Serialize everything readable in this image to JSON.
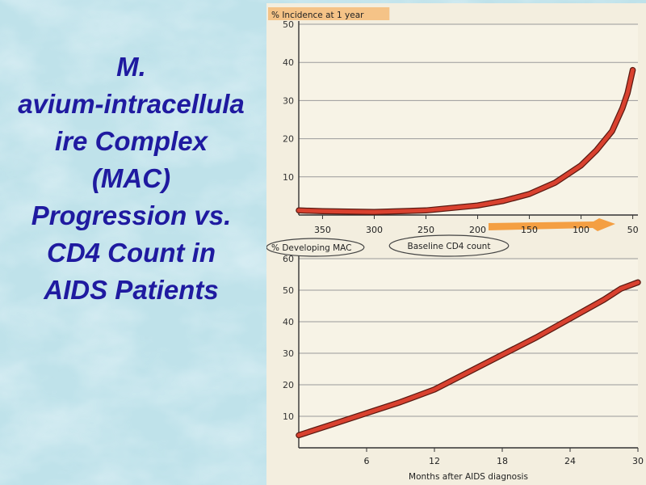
{
  "slide": {
    "title_lines": [
      "M.",
      "avium-intracellula",
      "ire Complex",
      "(MAC)",
      "Progression vs.",
      "CD4 Count in",
      "AIDS Patients"
    ]
  },
  "colors": {
    "background": "#bfe2ea",
    "title": "#1f1aa0",
    "curve": "#d9412f",
    "curve_outline": "#5a1a12",
    "highlight": "#f39a3a",
    "grid": "#9a9a9a"
  },
  "chart_data": [
    {
      "type": "line",
      "ylabel": "% Incidence at 1 year",
      "xlabel": "Baseline CD4 count",
      "x_reversed": true,
      "xlim": [
        373,
        45
      ],
      "ylim": [
        0,
        50
      ],
      "xticks": [
        350,
        300,
        250,
        200,
        150,
        100,
        50
      ],
      "yticks": [
        10,
        20,
        30,
        40,
        50
      ],
      "grid": true,
      "annotations": [
        "Baseline CD4 count circled",
        "x-axis highlighted with orange arrow"
      ],
      "series": [
        {
          "x": [
            373,
            350,
            300,
            250,
            200,
            175,
            150,
            125,
            100,
            85,
            70,
            60,
            55,
            50
          ],
          "y": [
            1.2,
            1.0,
            0.8,
            1.2,
            2.5,
            3.7,
            5.5,
            8.5,
            13,
            17,
            22,
            28,
            32,
            38
          ]
        }
      ]
    },
    {
      "type": "line",
      "ylabel": "% Developing MAC",
      "xlabel": "Months after AIDS diagnosis",
      "xlim": [
        0,
        30
      ],
      "ylim": [
        0,
        60
      ],
      "xticks": [
        6,
        12,
        18,
        24,
        30
      ],
      "yticks": [
        10,
        20,
        30,
        40,
        50,
        60
      ],
      "grid": true,
      "annotations": [
        "% Developing MAC circled"
      ],
      "series": [
        {
          "x": [
            0,
            3,
            6,
            9,
            12,
            15,
            18,
            21,
            24,
            27,
            28.5,
            30
          ],
          "y": [
            4,
            7.5,
            11,
            14.5,
            18.5,
            24,
            29.5,
            35,
            41,
            47,
            50.5,
            52.5
          ]
        }
      ]
    }
  ]
}
